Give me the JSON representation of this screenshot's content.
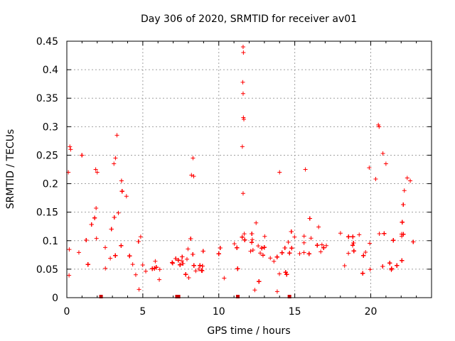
{
  "chart_data": {
    "type": "scatter",
    "title": "Day 306 of 2020, SRMTID for receiver av01",
    "xlabel": "GPS time / hours",
    "ylabel": "SRMTID / TECUs",
    "xlim": [
      0,
      24
    ],
    "ylim": [
      0,
      0.45
    ],
    "x_ticks": [
      0,
      5,
      10,
      15,
      20
    ],
    "x_tick_labels": [
      "0",
      "5",
      "10",
      "15",
      "20"
    ],
    "y_ticks": [
      0,
      0.05,
      0.1,
      0.15,
      0.2,
      0.25,
      0.3,
      0.35,
      0.4,
      0.45
    ],
    "y_tick_labels": [
      "0",
      "0.05",
      "0.1",
      "0.15",
      "0.2",
      "0.25",
      "0.3",
      "0.35",
      "0.4",
      "0.45"
    ],
    "grid": true,
    "marker": "+",
    "color": "#ff0000",
    "data_span_hours": [
      0,
      23
    ],
    "baseline_segments": [
      {
        "start": 0.0,
        "end": 3.0,
        "level": 0.11,
        "spread": 0.04
      },
      {
        "start": 3.0,
        "end": 4.0,
        "level": 0.12,
        "spread": 0.06
      },
      {
        "start": 4.0,
        "end": 7.5,
        "level": 0.055,
        "spread": 0.02
      },
      {
        "start": 7.5,
        "end": 11.0,
        "level": 0.06,
        "spread": 0.025
      },
      {
        "start": 11.0,
        "end": 12.5,
        "level": 0.08,
        "spread": 0.035
      },
      {
        "start": 12.5,
        "end": 14.5,
        "level": 0.06,
        "spread": 0.03
      },
      {
        "start": 14.5,
        "end": 17.0,
        "level": 0.085,
        "spread": 0.03
      },
      {
        "start": 17.0,
        "end": 20.0,
        "level": 0.075,
        "spread": 0.03
      },
      {
        "start": 20.0,
        "end": 21.2,
        "level": 0.1,
        "spread": 0.05
      },
      {
        "start": 21.2,
        "end": 22.0,
        "level": 0.06,
        "spread": 0.02
      },
      {
        "start": 22.0,
        "end": 23.0,
        "level": 0.11,
        "spread": 0.045
      }
    ],
    "notable_points": [
      {
        "x": 0.2,
        "y": 0.265
      },
      {
        "x": 0.25,
        "y": 0.26
      },
      {
        "x": 0.1,
        "y": 0.22
      },
      {
        "x": 1.9,
        "y": 0.225
      },
      {
        "x": 2.0,
        "y": 0.22
      },
      {
        "x": 3.3,
        "y": 0.285
      },
      {
        "x": 3.2,
        "y": 0.245
      },
      {
        "x": 3.1,
        "y": 0.235
      },
      {
        "x": 8.3,
        "y": 0.245
      },
      {
        "x": 8.2,
        "y": 0.215
      },
      {
        "x": 8.35,
        "y": 0.213
      },
      {
        "x": 11.6,
        "y": 0.44
      },
      {
        "x": 11.62,
        "y": 0.43
      },
      {
        "x": 11.58,
        "y": 0.378
      },
      {
        "x": 11.6,
        "y": 0.358
      },
      {
        "x": 11.62,
        "y": 0.316
      },
      {
        "x": 11.65,
        "y": 0.313
      },
      {
        "x": 11.55,
        "y": 0.265
      },
      {
        "x": 11.6,
        "y": 0.183
      },
      {
        "x": 14.0,
        "y": 0.22
      },
      {
        "x": 15.7,
        "y": 0.225
      },
      {
        "x": 19.9,
        "y": 0.228
      },
      {
        "x": 20.5,
        "y": 0.303
      },
      {
        "x": 20.55,
        "y": 0.3
      },
      {
        "x": 20.8,
        "y": 0.253
      },
      {
        "x": 21.0,
        "y": 0.235
      },
      {
        "x": 22.4,
        "y": 0.21
      },
      {
        "x": 22.6,
        "y": 0.205
      }
    ],
    "gap_markers_x": [
      2.25,
      7.25,
      7.35,
      11.25,
      14.65
    ]
  }
}
